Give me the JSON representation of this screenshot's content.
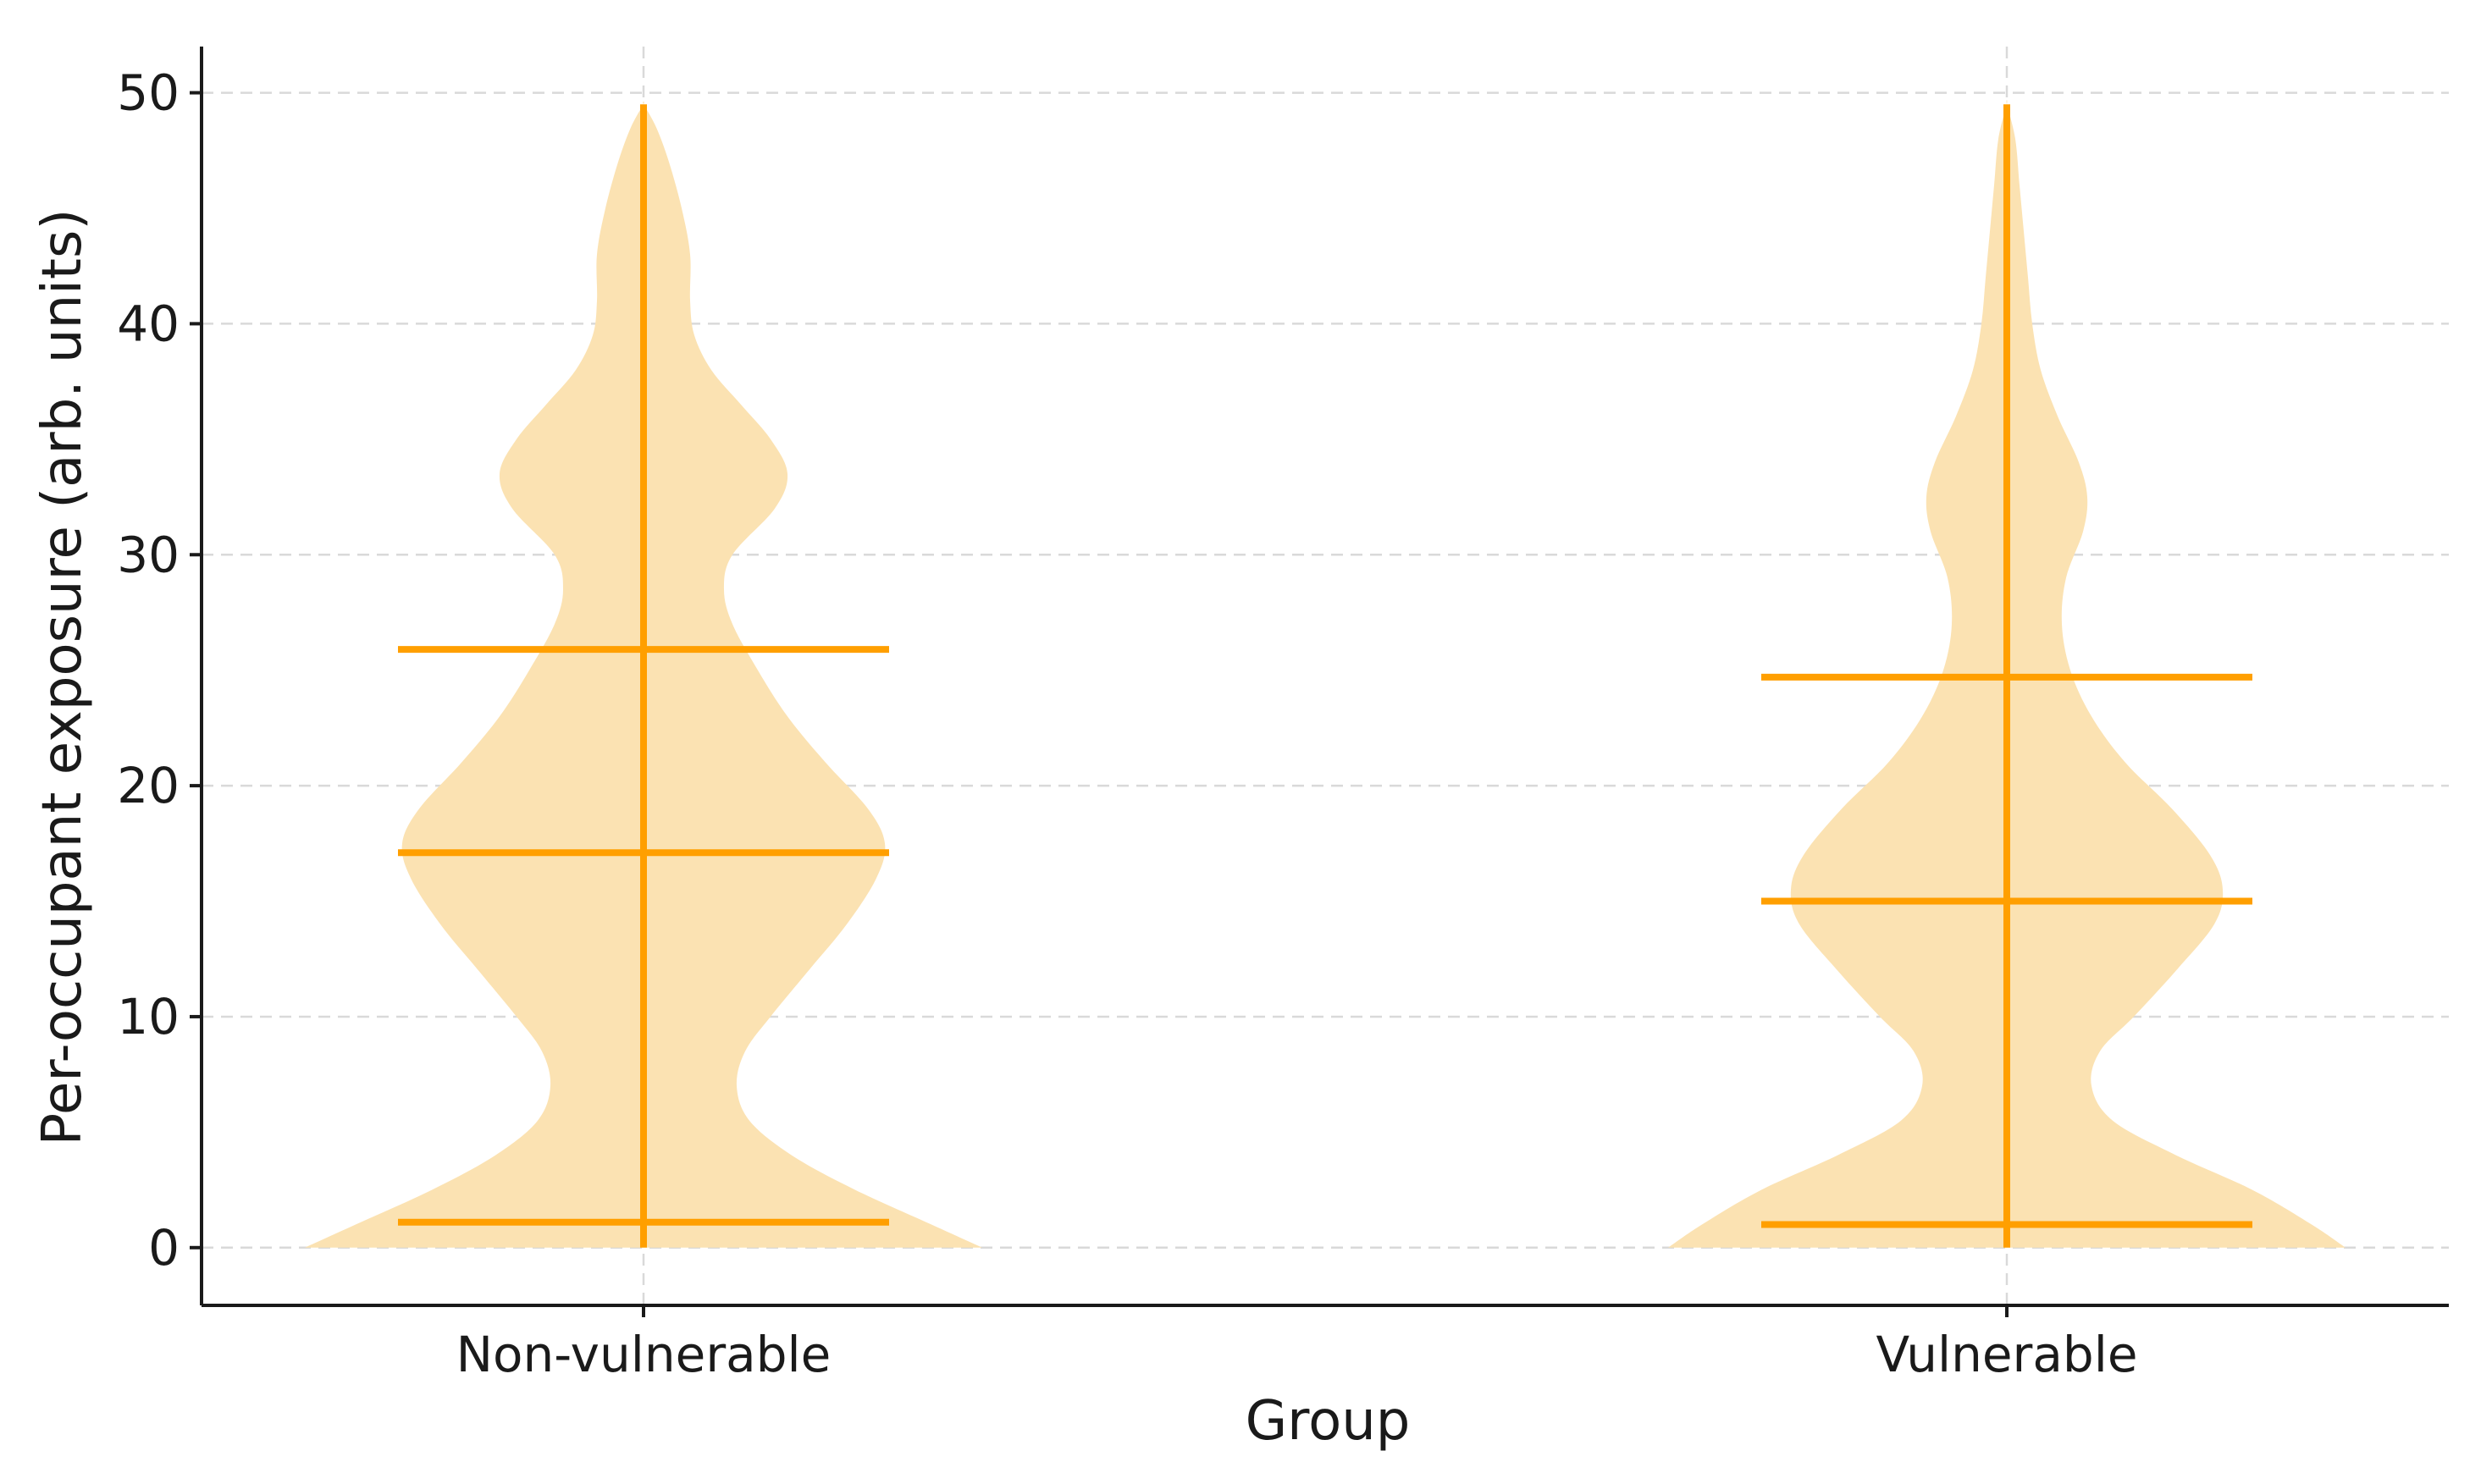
{
  "chart_data": {
    "type": "violin",
    "title": "",
    "xlabel": "Group",
    "ylabel": "Per-occupant exposure (arb. units)",
    "ylim": [
      -2.5,
      52
    ],
    "yticks": [
      0,
      10,
      20,
      30,
      40,
      50
    ],
    "grid": true,
    "categories": [
      "Non-vulnerable",
      "Vulnerable"
    ],
    "series": [
      {
        "category": "Non-vulnerable",
        "color": "#ff9f00",
        "fill": "#fbe2b2",
        "min": 1.1,
        "median": 17.1,
        "max": 49.5,
        "mean": 25.9,
        "min_marker": 1.1,
        "density_profile": [
          [
            0.0,
            0.8
          ],
          [
            1.0,
            0.68
          ],
          [
            2.5,
            0.5
          ],
          [
            4.0,
            0.35
          ],
          [
            5.5,
            0.25
          ],
          [
            7.0,
            0.22
          ],
          [
            8.5,
            0.24
          ],
          [
            10.0,
            0.3
          ],
          [
            12.0,
            0.39
          ],
          [
            14.0,
            0.48
          ],
          [
            16.0,
            0.55
          ],
          [
            17.5,
            0.57
          ],
          [
            19.0,
            0.53
          ],
          [
            21.0,
            0.43
          ],
          [
            23.0,
            0.34
          ],
          [
            25.0,
            0.27
          ],
          [
            27.0,
            0.21
          ],
          [
            28.5,
            0.19
          ],
          [
            30.0,
            0.21
          ],
          [
            32.0,
            0.31
          ],
          [
            33.5,
            0.34
          ],
          [
            35.0,
            0.3
          ],
          [
            36.5,
            0.23
          ],
          [
            38.0,
            0.16
          ],
          [
            39.5,
            0.12
          ],
          [
            41.0,
            0.11
          ],
          [
            43.0,
            0.11
          ],
          [
            45.0,
            0.09
          ],
          [
            47.0,
            0.06
          ],
          [
            48.5,
            0.03
          ],
          [
            49.5,
            0.0
          ]
        ]
      },
      {
        "category": "Vulnerable",
        "color": "#ff9f00",
        "fill": "#fbe2b2",
        "min": 1.0,
        "median": 15.0,
        "max": 49.5,
        "mean": 24.7,
        "min_marker": 1.0,
        "density_profile": [
          [
            0.0,
            0.8
          ],
          [
            1.0,
            0.72
          ],
          [
            2.5,
            0.58
          ],
          [
            4.0,
            0.4
          ],
          [
            5.5,
            0.25
          ],
          [
            7.0,
            0.2
          ],
          [
            8.5,
            0.22
          ],
          [
            10.0,
            0.3
          ],
          [
            12.0,
            0.4
          ],
          [
            14.0,
            0.49
          ],
          [
            15.5,
            0.51
          ],
          [
            17.0,
            0.48
          ],
          [
            19.0,
            0.39
          ],
          [
            21.0,
            0.28
          ],
          [
            23.0,
            0.2
          ],
          [
            25.0,
            0.15
          ],
          [
            27.0,
            0.13
          ],
          [
            29.0,
            0.14
          ],
          [
            31.0,
            0.18
          ],
          [
            32.5,
            0.19
          ],
          [
            34.0,
            0.17
          ],
          [
            36.0,
            0.12
          ],
          [
            38.0,
            0.08
          ],
          [
            40.0,
            0.06
          ],
          [
            42.0,
            0.05
          ],
          [
            44.0,
            0.04
          ],
          [
            46.0,
            0.03
          ],
          [
            48.0,
            0.02
          ],
          [
            49.5,
            0.0
          ]
        ]
      }
    ]
  }
}
